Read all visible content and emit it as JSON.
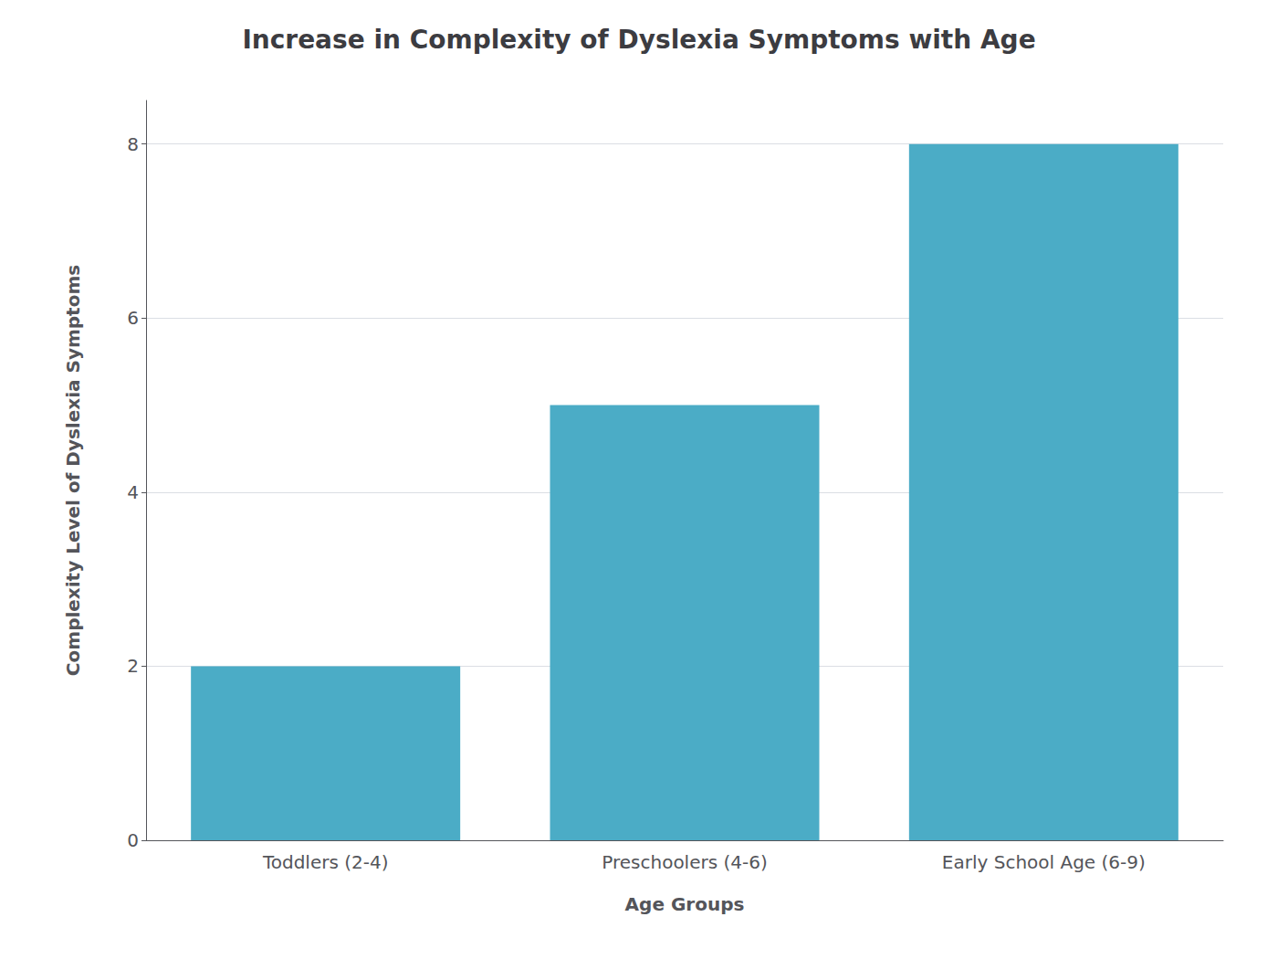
{
  "chart_data": {
    "type": "bar",
    "title": "Increase in Complexity of Dyslexia Symptoms with Age",
    "xlabel": "Age Groups",
    "ylabel": "Complexity Level of Dyslexia Symptoms",
    "categories": [
      "Toddlers (2-4)",
      "Preschoolers (4-6)",
      "Early School Age (6-9)"
    ],
    "values": [
      2,
      5,
      8
    ],
    "color": "#4BACC6",
    "ylim": [
      0,
      8.5
    ],
    "yticks": [
      0,
      2,
      4,
      6,
      8
    ],
    "grid": true
  }
}
